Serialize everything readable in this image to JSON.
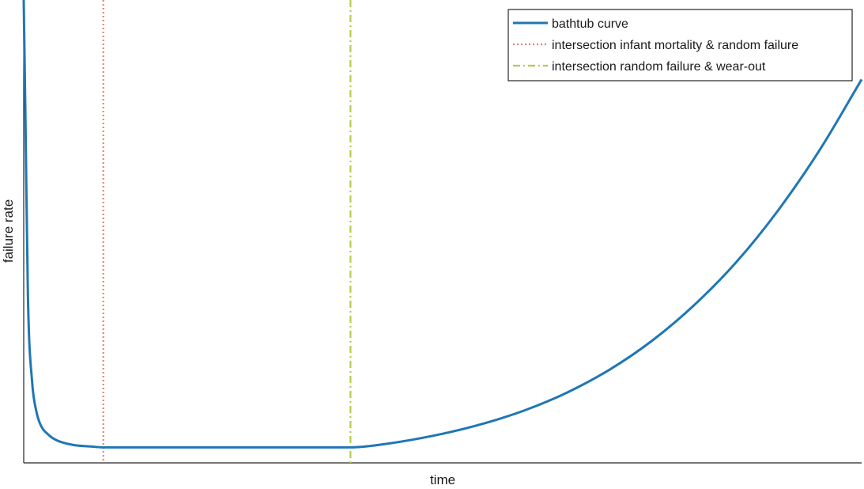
{
  "chart_data": {
    "type": "line",
    "xlabel": "time",
    "ylabel": "failure rate",
    "xlim": [
      0,
      10
    ],
    "ylim": [
      0,
      10
    ],
    "x_ticks_shown": false,
    "y_ticks_shown": false,
    "grid": false,
    "legend_position": "top-right",
    "series": [
      {
        "name": "bathtub curve",
        "style": "solid",
        "color": "#1f77b4",
        "x": [
          0.0,
          0.02,
          0.05,
          0.1,
          0.15,
          0.2,
          0.3,
          0.4,
          0.6,
          0.8,
          0.95,
          1.5,
          2.5,
          3.5,
          3.9,
          4.3,
          5.0,
          5.5,
          6.0,
          6.5,
          7.0,
          7.5,
          8.0,
          8.5,
          9.0,
          9.5,
          10.0
        ],
        "y": [
          10.0,
          7.5,
          3.5,
          1.6,
          0.95,
          0.65,
          0.42,
          0.3,
          0.2,
          0.17,
          0.15,
          0.15,
          0.15,
          0.15,
          0.15,
          0.22,
          0.45,
          0.68,
          0.98,
          1.37,
          1.87,
          2.5,
          3.28,
          4.22,
          5.36,
          6.7,
          8.25
        ]
      }
    ],
    "vertical_lines": [
      {
        "name": "intersection infant mortality & random failure",
        "x": 0.95,
        "style": "dotted",
        "color": "#e8836b"
      },
      {
        "name": "intersection random failure & wear-out",
        "x": 3.9,
        "style": "dash-dot",
        "color": "#b3cc4d"
      }
    ]
  }
}
